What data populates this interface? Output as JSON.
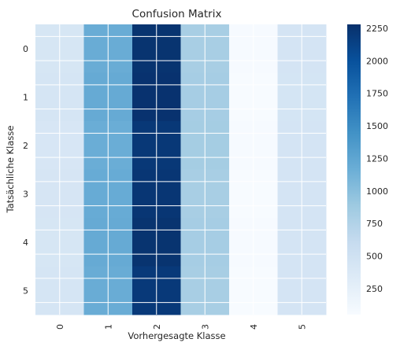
{
  "chart_data": {
    "type": "heatmap",
    "title": "Confusion Matrix",
    "xlabel": "Vorhergesagte Klasse",
    "ylabel": "Tatsächliche Klasse",
    "x_tick_labels": [
      "0",
      "1",
      "2",
      "3",
      "4",
      "5"
    ],
    "y_tick_labels": [
      "0",
      "1",
      "2",
      "3",
      "4",
      "5"
    ],
    "colormap": "Blues",
    "grid": true,
    "colorbar": {
      "min": 50,
      "max": 2280,
      "ticks": [
        250,
        500,
        750,
        1000,
        1250,
        1500,
        1750,
        2000,
        2250
      ]
    },
    "values": [
      [
        420,
        1180,
        2250,
        820,
        60,
        450
      ],
      [
        430,
        1200,
        2260,
        830,
        55,
        440
      ],
      [
        415,
        1170,
        2210,
        840,
        60,
        450
      ],
      [
        425,
        1190,
        2230,
        820,
        55,
        445
      ],
      [
        420,
        1200,
        2250,
        830,
        60,
        450
      ],
      [
        430,
        1180,
        2200,
        820,
        55,
        445
      ]
    ]
  }
}
